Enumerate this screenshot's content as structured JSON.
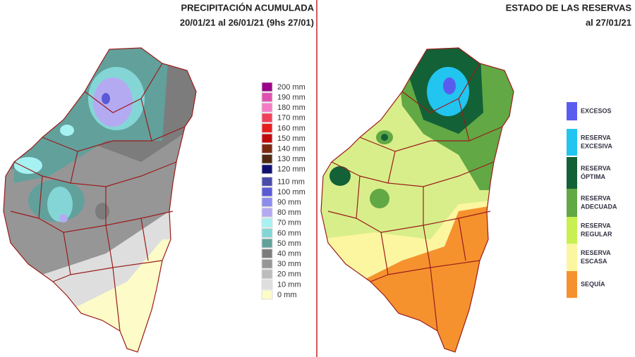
{
  "left_panel": {
    "title": "PRECIPITACIÓN ACUMULADA",
    "subtitle": "20/01/21 al 26/01/21 (9hs 27/01)",
    "legend": [
      {
        "label": "200 mm",
        "color": "#9a0088"
      },
      {
        "label": "190 mm",
        "color": "#e050b0"
      },
      {
        "label": "180 mm",
        "color": "#f47cc4"
      },
      {
        "label": "170 mm",
        "color": "#f0405a"
      },
      {
        "label": "160 mm",
        "color": "#e61e1e"
      },
      {
        "label": "150 mm",
        "color": "#c00a0a"
      },
      {
        "label": "140 mm",
        "color": "#7a2a10"
      },
      {
        "label": "130 mm",
        "color": "#4e2810"
      },
      {
        "label": "120 mm",
        "color": "#101070"
      },
      {
        "label": "110 mm",
        "color": "#484ca8"
      },
      {
        "label": "100 mm",
        "color": "#5a5ad6"
      },
      {
        "label": "90 mm",
        "color": "#8c8cec"
      },
      {
        "label": "80 mm",
        "color": "#b4aaf2"
      },
      {
        "label": "70 mm",
        "color": "#a6f2f2"
      },
      {
        "label": "60 mm",
        "color": "#84d6d6"
      },
      {
        "label": "50 mm",
        "color": "#62a09c"
      },
      {
        "label": "40 mm",
        "color": "#7c7c7c"
      },
      {
        "label": "30 mm",
        "color": "#969696"
      },
      {
        "label": "20 mm",
        "color": "#bcbcbc"
      },
      {
        "label": "10 mm",
        "color": "#dedede"
      },
      {
        "label": "0 mm",
        "color": "#fdfbc8"
      }
    ]
  },
  "right_panel": {
    "title": "ESTADO DE LAS RESERVAS",
    "subtitle": "al 27/01/21",
    "legend": [
      {
        "lines": [
          "EXCESOS"
        ],
        "color": "#5a5cf0"
      },
      {
        "lines": [
          "RESERVA",
          "EXCESIVA"
        ],
        "color": "#22c4f0"
      },
      {
        "lines": [
          "RESERVA",
          "ÓPTIMA"
        ],
        "color": "#136136"
      },
      {
        "lines": [
          "RESERVA",
          "ADECUADA"
        ],
        "color": "#62a844"
      },
      {
        "lines": [
          "RESERVA",
          "REGULAR"
        ],
        "color": "#c8f050"
      },
      {
        "lines": [
          "RESERVA",
          "ESCASA"
        ],
        "color": "#fcf6a0"
      },
      {
        "lines": [
          "SEQUÍA"
        ],
        "color": "#f5922e"
      }
    ]
  }
}
